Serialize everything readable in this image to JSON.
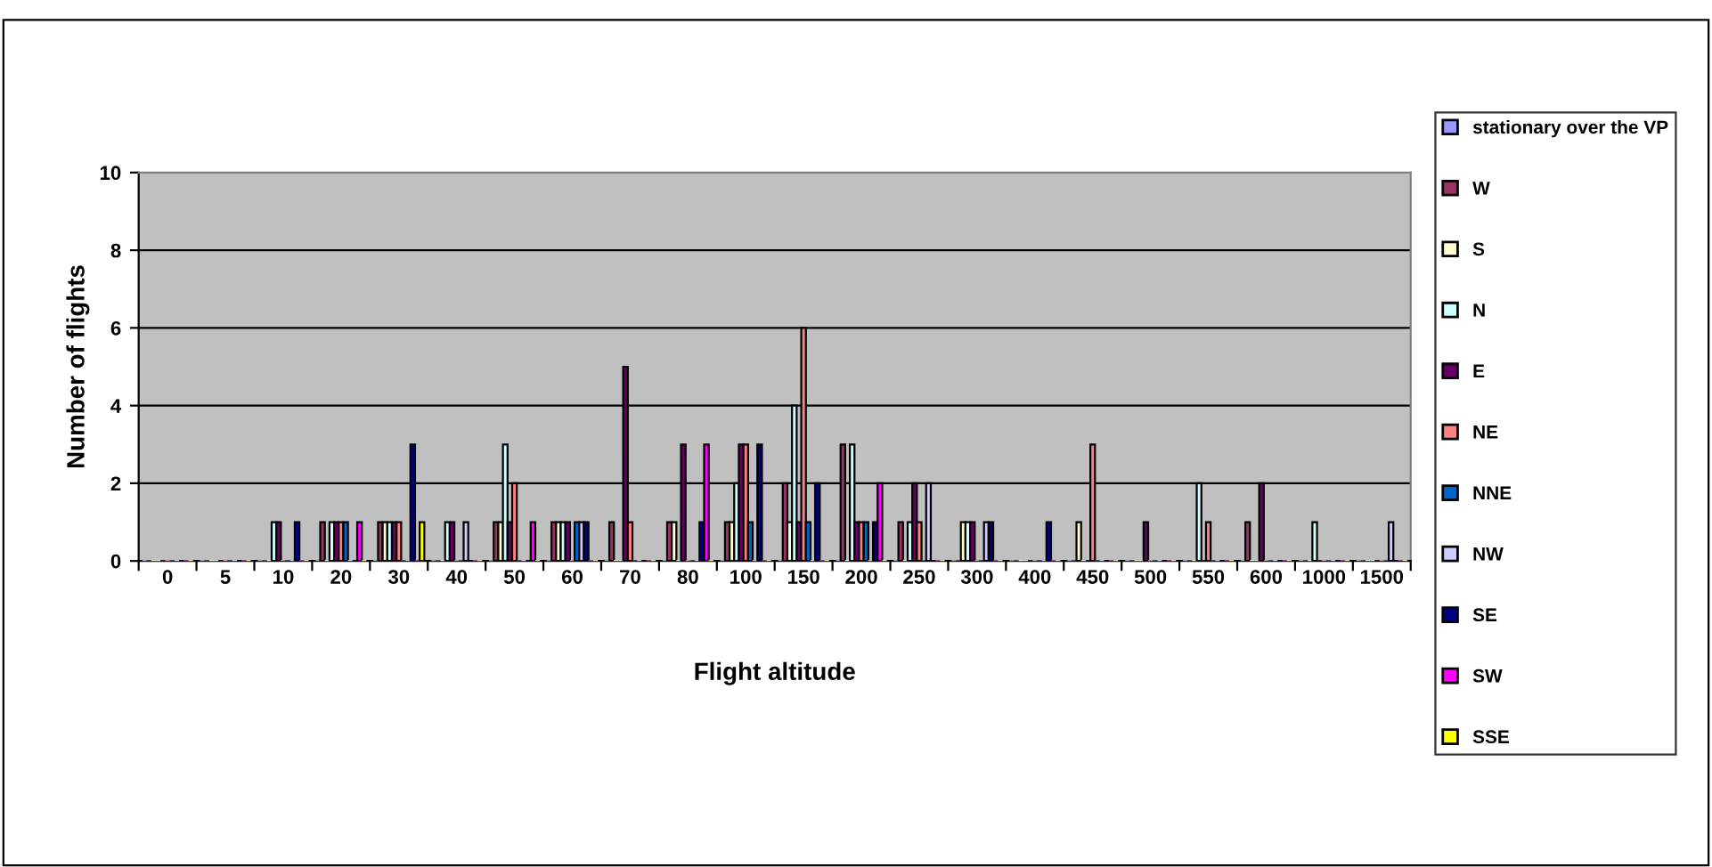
{
  "chart_data": {
    "type": "bar",
    "xlabel": "Flight altitude",
    "ylabel": "Number of flights",
    "categories": [
      "0",
      "5",
      "10",
      "20",
      "30",
      "40",
      "50",
      "60",
      "70",
      "80",
      "100",
      "150",
      "200",
      "250",
      "300",
      "400",
      "450",
      "500",
      "550",
      "600",
      "1000",
      "1500"
    ],
    "ylim": [
      0,
      10
    ],
    "yticks": [
      0,
      2,
      4,
      6,
      8,
      10
    ],
    "grid": "y",
    "legend": "right",
    "series": [
      {
        "name": "stationary over the VP",
        "color": "#9999ff",
        "values": [
          0,
          0,
          0,
          0,
          0,
          0,
          0,
          0,
          0,
          0,
          0,
          0,
          0,
          0,
          0,
          0,
          0,
          0,
          0,
          0,
          0,
          0
        ]
      },
      {
        "name": "W",
        "color": "#993366",
        "values": [
          0,
          0,
          0,
          1,
          1,
          0,
          1,
          1,
          1,
          1,
          1,
          2,
          3,
          1,
          0,
          0,
          0,
          0,
          0,
          1,
          0,
          0
        ]
      },
      {
        "name": "S",
        "color": "#ffffcc",
        "values": [
          0,
          0,
          0,
          0,
          1,
          0,
          1,
          1,
          0,
          1,
          1,
          1,
          0,
          0,
          1,
          0,
          1,
          0,
          0,
          0,
          0,
          0
        ]
      },
      {
        "name": "N",
        "color": "#ccffff",
        "values": [
          0,
          0,
          1,
          1,
          1,
          1,
          3,
          1,
          0,
          0,
          2,
          4,
          3,
          1,
          1,
          0,
          0,
          0,
          2,
          0,
          1,
          0
        ]
      },
      {
        "name": "E",
        "color": "#660066",
        "values": [
          0,
          0,
          1,
          1,
          1,
          1,
          1,
          1,
          5,
          3,
          3,
          1,
          1,
          2,
          1,
          0,
          0,
          1,
          0,
          2,
          0,
          0
        ]
      },
      {
        "name": "NE",
        "color": "#ff8080",
        "values": [
          0,
          0,
          0,
          1,
          1,
          0,
          2,
          0,
          1,
          0,
          3,
          6,
          1,
          1,
          0,
          0,
          3,
          0,
          1,
          0,
          0,
          0
        ]
      },
      {
        "name": "NNE",
        "color": "#0066cc",
        "values": [
          0,
          0,
          0,
          1,
          0,
          0,
          0,
          1,
          0,
          0,
          1,
          1,
          1,
          0,
          0,
          0,
          0,
          0,
          0,
          0,
          0,
          0
        ]
      },
      {
        "name": "NW",
        "color": "#ccccff",
        "values": [
          0,
          0,
          0,
          0,
          0,
          1,
          0,
          1,
          0,
          0,
          0,
          0,
          0,
          2,
          1,
          0,
          0,
          0,
          0,
          0,
          0,
          1
        ]
      },
      {
        "name": "SE",
        "color": "#000080",
        "values": [
          0,
          0,
          1,
          0,
          3,
          0,
          0,
          1,
          0,
          1,
          3,
          2,
          1,
          0,
          1,
          1,
          0,
          0,
          0,
          0,
          0,
          0
        ]
      },
      {
        "name": "SW",
        "color": "#ff00ff",
        "values": [
          0,
          0,
          0,
          1,
          0,
          0,
          1,
          0,
          0,
          3,
          0,
          0,
          2,
          0,
          0,
          0,
          0,
          0,
          0,
          0,
          0,
          0
        ]
      },
      {
        "name": "SSE",
        "color": "#ffff00",
        "values": [
          0,
          0,
          0,
          0,
          1,
          0,
          0,
          0,
          0,
          0,
          0,
          0,
          0,
          0,
          0,
          0,
          0,
          0,
          0,
          0,
          0,
          0
        ]
      }
    ]
  }
}
